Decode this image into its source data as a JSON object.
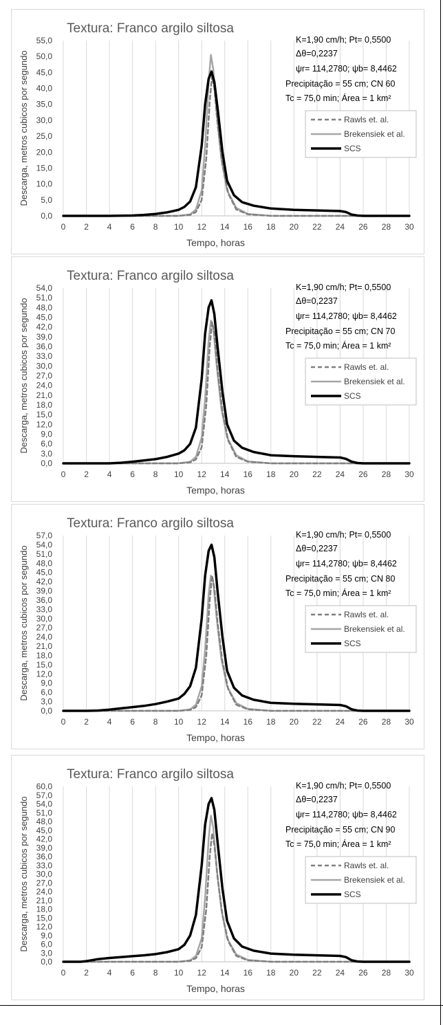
{
  "colors": {
    "rawls": "#7f7f7f",
    "brakensiek": "#a6a6a6",
    "scs": "#000000",
    "grid": "#d9d9d9",
    "text": "#404040"
  },
  "chart_data": [
    {
      "type": "line",
      "title": "Textura: Franco argilo siltosa",
      "xlabel": "Tempo, horas",
      "ylabel": "Descarga, metros cubicos por segundo",
      "xlim": [
        0,
        30
      ],
      "ylim": [
        0,
        55
      ],
      "x_ticks": [
        "0",
        "2",
        "4",
        "6",
        "8",
        "10",
        "12",
        "14",
        "16",
        "18",
        "20",
        "22",
        "24",
        "26",
        "28",
        "30"
      ],
      "y_ticks": [
        "0,0",
        "5,0",
        "10,0",
        "15,0",
        "20,0",
        "25,0",
        "30,0",
        "35,0",
        "40,0",
        "45,0",
        "50,0",
        "55,0"
      ],
      "y_tick_step": 5,
      "grid": "vertical",
      "legend_position": "right",
      "annotations": [
        "K=1,90 cm/h; Pt= 0,5500",
        "Δθ=0,2237",
        "ψr= 114,2780;  ψb= 8,4462",
        "Precipitação = 55 cm; CN 60",
        "Tc = 75,0 min; Área = 1 km²"
      ],
      "series": [
        {
          "name": "Rawls et. al.",
          "style": "dashed",
          "color": "#7f7f7f",
          "x": [
            0,
            10,
            11,
            11.5,
            12,
            12.4,
            12.7,
            12.9,
            13.1,
            13.4,
            13.8,
            14.3,
            15,
            16,
            18,
            30
          ],
          "y": [
            0,
            0,
            0.3,
            1.2,
            5,
            18,
            36,
            44,
            40,
            28,
            16,
            7,
            2,
            0.5,
            0,
            0
          ]
        },
        {
          "name": "Brekensiek et al.",
          "style": "solid",
          "color": "#a6a6a6",
          "x": [
            0,
            10,
            11,
            11.5,
            12,
            12.3,
            12.6,
            12.8,
            13,
            13.3,
            13.7,
            14.2,
            15,
            16,
            18,
            30
          ],
          "y": [
            0,
            0,
            0.5,
            2,
            8,
            22,
            42,
            50.5,
            46,
            32,
            18,
            8,
            2.5,
            0.6,
            0,
            0
          ]
        },
        {
          "name": "SCS",
          "style": "solid-thick",
          "color": "#000000",
          "x": [
            0,
            4,
            6,
            7,
            8,
            9,
            10,
            10.5,
            11,
            11.5,
            12,
            12.3,
            12.6,
            12.85,
            13.1,
            13.4,
            13.8,
            14.2,
            14.8,
            15.5,
            16.5,
            18,
            20,
            22,
            24,
            24.5,
            25,
            25.5,
            26,
            30
          ],
          "y": [
            0,
            0,
            0.1,
            0.3,
            0.6,
            1.1,
            1.9,
            2.8,
            4.5,
            9,
            22,
            35,
            43,
            45.3,
            42,
            33,
            20,
            11,
            6.5,
            4.3,
            3.2,
            2.3,
            1.9,
            1.7,
            1.5,
            1.2,
            0.4,
            0.1,
            0,
            0
          ]
        }
      ]
    },
    {
      "type": "line",
      "title": "Textura: Franco argilo siltosa",
      "xlabel": "Tempo, horas",
      "ylabel": "Descarga, metros cubicos por segundo",
      "xlim": [
        0,
        30
      ],
      "ylim": [
        0,
        54
      ],
      "x_ticks": [
        "0",
        "2",
        "4",
        "6",
        "8",
        "10",
        "12",
        "14",
        "16",
        "18",
        "20",
        "22",
        "24",
        "26",
        "28",
        "30"
      ],
      "y_ticks": [
        "0,0",
        "3,0",
        "6,0",
        "9,0",
        "12,0",
        "15,0",
        "18,0",
        "21,0",
        "24,0",
        "27,0",
        "30,0",
        "33,0",
        "36,0",
        "39,0",
        "42,0",
        "45,0",
        "48,0",
        "51,0",
        "54,0"
      ],
      "y_tick_step": 3,
      "grid": "vertical",
      "legend_position": "right",
      "annotations": [
        "K=1,90 cm/h; Pt= 0,5500",
        "Δθ=0,2237",
        "ψr= 114,2780;  ψb= 8,4462",
        "Precipitação = 55 cm; CN 70",
        "Tc = 75,0 min; Área = 1 km²"
      ],
      "series": [
        {
          "name": "Rawls et. al.",
          "style": "dashed",
          "color": "#7f7f7f",
          "x": [
            0,
            10,
            11,
            11.5,
            12,
            12.4,
            12.7,
            12.9,
            13.1,
            13.4,
            13.8,
            14.3,
            15,
            16,
            18,
            30
          ],
          "y": [
            0,
            0,
            0.3,
            1.2,
            5,
            18,
            36,
            43.5,
            40,
            28,
            16,
            7,
            2,
            0.5,
            0,
            0
          ]
        },
        {
          "name": "Brekensiek et al.",
          "style": "solid",
          "color": "#a6a6a6",
          "x": [
            0,
            10,
            11,
            11.5,
            12,
            12.3,
            12.6,
            12.8,
            13,
            13.3,
            13.7,
            14.2,
            15,
            16,
            18,
            30
          ],
          "y": [
            0,
            0,
            0.5,
            2,
            8,
            20,
            38,
            44,
            42,
            30,
            17,
            8,
            2.5,
            0.6,
            0,
            0
          ]
        },
        {
          "name": "SCS",
          "style": "solid-thick",
          "color": "#000000",
          "x": [
            0,
            4,
            5,
            6,
            7,
            8,
            9,
            10,
            10.5,
            11,
            11.5,
            12,
            12.3,
            12.6,
            12.85,
            13.1,
            13.4,
            13.8,
            14.2,
            14.8,
            15.5,
            16.5,
            18,
            20,
            22,
            24,
            24.5,
            25,
            25.5,
            26,
            30
          ],
          "y": [
            0,
            0,
            0.2,
            0.5,
            0.9,
            1.3,
            2,
            3,
            4,
            6,
            11,
            26,
            40,
            48,
            50.2,
            46,
            35,
            22,
            12,
            7,
            4.8,
            3.5,
            2.5,
            2.2,
            2,
            1.8,
            1.4,
            0.5,
            0.1,
            0,
            0
          ]
        }
      ]
    },
    {
      "type": "line",
      "title": "Textura: Franco argilo siltosa",
      "xlabel": "Tempo, horas",
      "ylabel": "Descarga, metros cubicos por segundo",
      "xlim": [
        0,
        30
      ],
      "ylim": [
        0,
        57
      ],
      "x_ticks": [
        "0",
        "2",
        "4",
        "6",
        "8",
        "10",
        "12",
        "14",
        "16",
        "18",
        "20",
        "22",
        "24",
        "26",
        "28",
        "30"
      ],
      "y_ticks": [
        "0,0",
        "3,0",
        "6,0",
        "9,0",
        "12,0",
        "15,0",
        "18,0",
        "21,0",
        "24,0",
        "27,0",
        "30,0",
        "33,0",
        "36,0",
        "39,0",
        "42,0",
        "45,0",
        "48,0",
        "51,0",
        "54,0",
        "57,0"
      ],
      "y_tick_step": 3,
      "grid": "vertical",
      "legend_position": "right",
      "annotations": [
        "K=1,90 cm/h; Pt= 0,5500",
        "Δθ=0,2237",
        "ψr= 114,2780;  ψb= 8,4462",
        "Precipitação = 55 cm; CN 80",
        "Tc = 75,0 min; Área = 1 km²"
      ],
      "series": [
        {
          "name": "Rawls et. al.",
          "style": "dashed",
          "color": "#7f7f7f",
          "x": [
            0,
            10,
            11,
            11.5,
            12,
            12.4,
            12.7,
            12.9,
            13.1,
            13.4,
            13.8,
            14.3,
            15,
            16,
            18,
            30
          ],
          "y": [
            0,
            0,
            0.3,
            1.2,
            5,
            18,
            36,
            44,
            40,
            28,
            16,
            7,
            2,
            0.5,
            0,
            0
          ]
        },
        {
          "name": "Brekensiek et al.",
          "style": "solid",
          "color": "#a6a6a6",
          "x": [
            0,
            10,
            11,
            11.5,
            12,
            12.3,
            12.6,
            12.8,
            13,
            13.3,
            13.7,
            14.2,
            15,
            16,
            18,
            30
          ],
          "y": [
            0,
            0,
            0.5,
            2,
            8,
            20,
            38,
            44,
            42,
            30,
            17,
            8,
            2.5,
            0.6,
            0,
            0
          ]
        },
        {
          "name": "SCS",
          "style": "solid-thick",
          "color": "#000000",
          "x": [
            0,
            2,
            3,
            4,
            5,
            6,
            7,
            8,
            9,
            10,
            10.5,
            11,
            11.5,
            12,
            12.3,
            12.6,
            12.85,
            13.1,
            13.4,
            13.8,
            14.2,
            14.8,
            15.5,
            16.5,
            18,
            20,
            22,
            24,
            24.5,
            25,
            25.5,
            26,
            30
          ],
          "y": [
            0,
            0,
            0.1,
            0.4,
            0.8,
            1.2,
            1.6,
            2.2,
            3,
            4,
            5.5,
            8,
            14,
            30,
            44,
            52,
            54,
            50,
            38,
            24,
            13,
            7.5,
            5,
            3.6,
            2.6,
            2.3,
            2.1,
            1.9,
            1.5,
            0.5,
            0.1,
            0,
            0
          ]
        }
      ]
    },
    {
      "type": "line",
      "title": "Textura: Franco argilo siltosa",
      "xlabel": "Tempo, horas",
      "ylabel": "Descarga, metros cubicos por segundo",
      "xlim": [
        0,
        30
      ],
      "ylim": [
        0,
        60
      ],
      "x_ticks": [
        "0",
        "2",
        "4",
        "6",
        "8",
        "10",
        "12",
        "14",
        "16",
        "18",
        "20",
        "22",
        "24",
        "26",
        "28",
        "30"
      ],
      "y_ticks": [
        "0,0",
        "3,0",
        "6,0",
        "9,0",
        "12,0",
        "15,0",
        "18,0",
        "21,0",
        "24,0",
        "27,0",
        "30,0",
        "33,0",
        "36,0",
        "39,0",
        "42,0",
        "45,0",
        "48,0",
        "51,0",
        "54,0",
        "57,0",
        "60,0"
      ],
      "y_tick_step": 3,
      "grid": "vertical",
      "legend_position": "right",
      "annotations": [
        "K=1,90 cm/h; Pt= 0,5500",
        "Δθ=0,2237",
        "ψr= 114,2780;  ψb= 8,4462",
        "Precipitação = 55 cm; CN 90",
        "Tc = 75,0 min; Área = 1 km²"
      ],
      "series": [
        {
          "name": "Rawls et. al.",
          "style": "dashed",
          "color": "#7f7f7f",
          "x": [
            0,
            10,
            11,
            11.5,
            12,
            12.4,
            12.7,
            12.9,
            13.1,
            13.4,
            13.8,
            14.3,
            15,
            16,
            18,
            30
          ],
          "y": [
            0,
            0,
            0.3,
            1.2,
            5,
            18,
            36,
            44,
            40,
            28,
            16,
            7,
            2,
            0.5,
            0,
            0
          ]
        },
        {
          "name": "Brekensiek et al.",
          "style": "solid",
          "color": "#a6a6a6",
          "x": [
            0,
            10,
            11,
            11.5,
            12,
            12.3,
            12.6,
            12.8,
            13,
            13.3,
            13.7,
            14.2,
            15,
            16,
            18,
            30
          ],
          "y": [
            0,
            0,
            0.5,
            2,
            8,
            22,
            42,
            50,
            46,
            32,
            18,
            8,
            2.5,
            0.6,
            0,
            0
          ]
        },
        {
          "name": "SCS",
          "style": "solid-thick",
          "color": "#000000",
          "x": [
            0,
            1.5,
            2,
            3,
            4,
            5,
            6,
            7,
            8,
            9,
            10,
            10.5,
            11,
            11.5,
            12,
            12.3,
            12.6,
            12.85,
            13.1,
            13.4,
            13.8,
            14.2,
            14.8,
            15.5,
            16.5,
            18,
            20,
            22,
            24,
            24.5,
            25,
            25.5,
            26,
            30
          ],
          "y": [
            0,
            0,
            0.2,
            0.9,
            1.3,
            1.6,
            1.9,
            2.2,
            2.6,
            3.3,
            4.3,
            5.8,
            9,
            16,
            33,
            47,
            54,
            56,
            52,
            40,
            25,
            14,
            8,
            5.2,
            3.8,
            2.8,
            2.4,
            2.2,
            2,
            1.6,
            0.5,
            0.1,
            0,
            0
          ]
        }
      ]
    }
  ]
}
